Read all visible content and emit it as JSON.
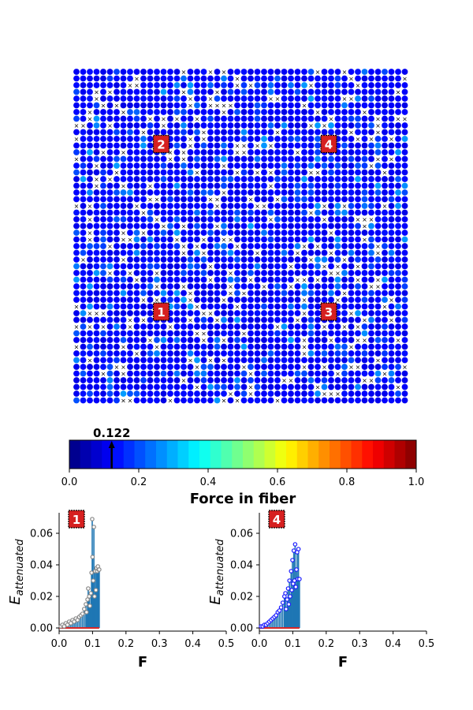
{
  "chart_data": [
    {
      "type": "scatter",
      "description_kind": "fiber-grid",
      "grid_rows": 50,
      "grid_cols": 50,
      "dominant_color": "#1a4dff",
      "broken_marker": "×",
      "markers": [
        {
          "label": "1",
          "row": 36,
          "col": 13
        },
        {
          "label": "2",
          "row": 11,
          "col": 13
        },
        {
          "label": "3",
          "row": 36,
          "col": 38
        },
        {
          "label": "4",
          "row": 11,
          "col": 38
        }
      ]
    },
    {
      "type": "colorbar",
      "cmap": "jet",
      "xlabel": "Force in fiber",
      "xlim": [
        0.0,
        1.0
      ],
      "ticks": [
        "0.0",
        "0.2",
        "0.4",
        "0.6",
        "0.8",
        "1.0"
      ],
      "indicator_value": 0.122,
      "indicator_label": "0.122"
    },
    {
      "type": "stem",
      "badge": "1",
      "xlabel": "F",
      "ylabel": "E_attenuated",
      "xlim": [
        0.0,
        0.5
      ],
      "ylim": [
        -0.002,
        0.073
      ],
      "xticks": [
        "0.0",
        "0.1",
        "0.2",
        "0.3",
        "0.4",
        "0.5"
      ],
      "yticks": [
        "0.00",
        "0.02",
        "0.04",
        "0.06"
      ],
      "marker_color": "#888888",
      "stem_color": "#1f77b4",
      "baseline_color": "#d62728",
      "points": [
        [
          0.005,
          0.001
        ],
        [
          0.01,
          0.002
        ],
        [
          0.015,
          0.001
        ],
        [
          0.02,
          0.003
        ],
        [
          0.025,
          0.002
        ],
        [
          0.03,
          0.004
        ],
        [
          0.035,
          0.003
        ],
        [
          0.04,
          0.005
        ],
        [
          0.045,
          0.004
        ],
        [
          0.05,
          0.006
        ],
        [
          0.055,
          0.005
        ],
        [
          0.06,
          0.007
        ],
        [
          0.065,
          0.008
        ],
        [
          0.07,
          0.009
        ],
        [
          0.075,
          0.012
        ],
        [
          0.08,
          0.015
        ],
        [
          0.082,
          0.01
        ],
        [
          0.085,
          0.018
        ],
        [
          0.087,
          0.025
        ],
        [
          0.09,
          0.02
        ],
        [
          0.092,
          0.014
        ],
        [
          0.095,
          0.022
        ],
        [
          0.097,
          0.035
        ],
        [
          0.099,
          0.069
        ],
        [
          0.1,
          0.045
        ],
        [
          0.102,
          0.03
        ],
        [
          0.104,
          0.064
        ],
        [
          0.106,
          0.02
        ],
        [
          0.108,
          0.036
        ],
        [
          0.11,
          0.024
        ],
        [
          0.112,
          0.038
        ],
        [
          0.114,
          0.036
        ],
        [
          0.116,
          0.039
        ],
        [
          0.118,
          0.037
        ],
        [
          0.12,
          0.037
        ]
      ]
    },
    {
      "type": "stem",
      "badge": "4",
      "xlabel": "F",
      "ylabel": "E_attenuated",
      "xlim": [
        0.0,
        0.5
      ],
      "ylim": [
        -0.002,
        0.073
      ],
      "xticks": [
        "0.0",
        "0.1",
        "0.2",
        "0.3",
        "0.4",
        "0.5"
      ],
      "yticks": [
        "0.00",
        "0.02",
        "0.04",
        "0.06"
      ],
      "marker_color": "#1a1aff",
      "stem_color": "#1f77b4",
      "baseline_color": "#d62728",
      "points": [
        [
          0.005,
          0.001
        ],
        [
          0.01,
          0.001
        ],
        [
          0.015,
          0.002
        ],
        [
          0.02,
          0.002
        ],
        [
          0.025,
          0.003
        ],
        [
          0.03,
          0.004
        ],
        [
          0.035,
          0.005
        ],
        [
          0.04,
          0.006
        ],
        [
          0.045,
          0.007
        ],
        [
          0.05,
          0.008
        ],
        [
          0.055,
          0.01
        ],
        [
          0.06,
          0.011
        ],
        [
          0.065,
          0.013
        ],
        [
          0.07,
          0.016
        ],
        [
          0.075,
          0.02
        ],
        [
          0.078,
          0.022
        ],
        [
          0.08,
          0.012
        ],
        [
          0.083,
          0.018
        ],
        [
          0.086,
          0.025
        ],
        [
          0.088,
          0.015
        ],
        [
          0.09,
          0.03
        ],
        [
          0.092,
          0.02
        ],
        [
          0.095,
          0.036
        ],
        [
          0.097,
          0.024
        ],
        [
          0.099,
          0.043
        ],
        [
          0.101,
          0.028
        ],
        [
          0.103,
          0.049
        ],
        [
          0.105,
          0.03
        ],
        [
          0.107,
          0.053
        ],
        [
          0.109,
          0.026
        ],
        [
          0.111,
          0.037
        ],
        [
          0.113,
          0.048
        ],
        [
          0.115,
          0.031
        ],
        [
          0.117,
          0.05
        ],
        [
          0.12,
          0.031
        ]
      ]
    }
  ]
}
